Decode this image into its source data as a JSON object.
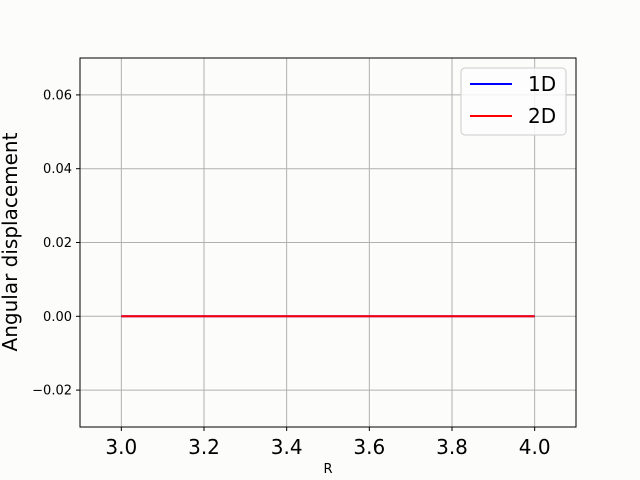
{
  "chart_data": {
    "type": "line",
    "title": "",
    "xlabel": "R",
    "ylabel": "Angular displacement",
    "xlim": [
      2.9,
      4.1
    ],
    "ylim": [
      -0.03,
      0.07
    ],
    "xticks": [
      3.0,
      3.2,
      3.4,
      3.6,
      3.8,
      4.0
    ],
    "xtick_labels": [
      "3.0",
      "3.2",
      "3.4",
      "3.6",
      "3.8",
      "4.0"
    ],
    "yticks": [
      -0.02,
      0.0,
      0.02,
      0.04,
      0.06
    ],
    "ytick_labels": [
      "−0.02",
      "0.00",
      "0.02",
      "0.04",
      "0.06"
    ],
    "grid": true,
    "legend_position": "top-right",
    "background": "#fcfdfb",
    "series": [
      {
        "name": "1D",
        "color": "#0000ff",
        "x": [
          3.0,
          3.2,
          3.4,
          3.6,
          3.8,
          4.0
        ],
        "y": [
          0,
          0,
          0,
          0,
          0,
          0
        ]
      },
      {
        "name": "2D",
        "color": "#ff0000",
        "x": [
          3.0,
          3.2,
          3.4,
          3.6,
          3.8,
          4.0
        ],
        "y": [
          0,
          0,
          0,
          0,
          0,
          0
        ]
      }
    ]
  }
}
